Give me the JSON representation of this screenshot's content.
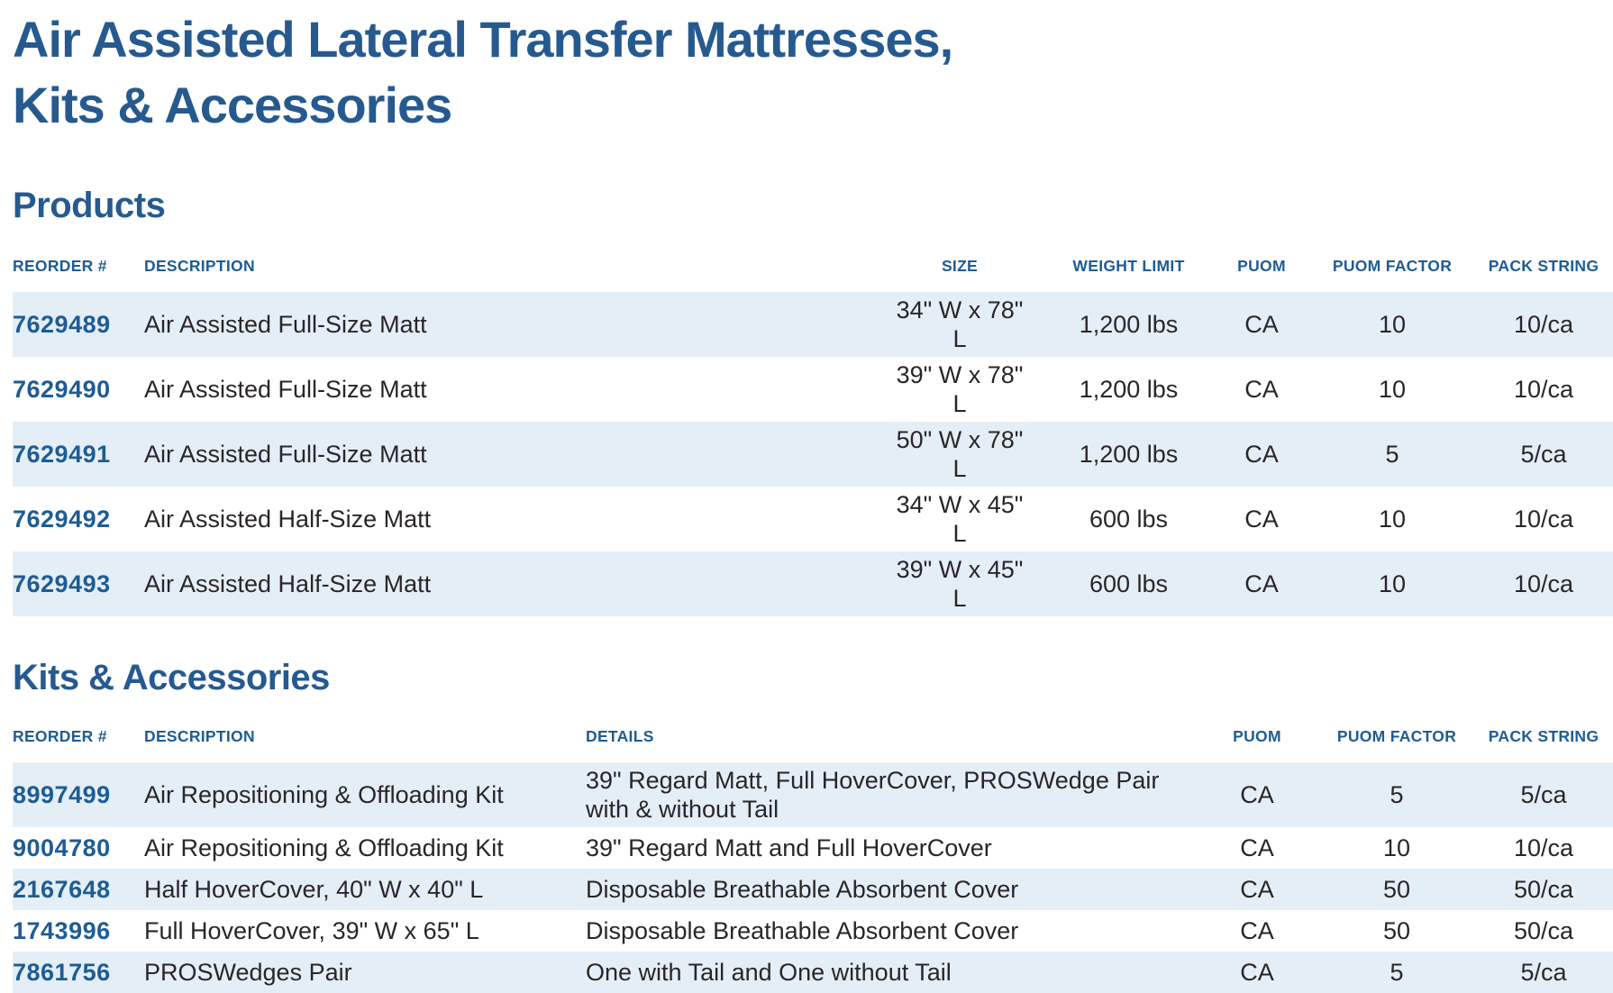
{
  "page": {
    "title_line1": "Air Assisted Lateral Transfer Mattresses,",
    "title_line2": "Kits & Accessories"
  },
  "colors": {
    "heading_blue": "#265a8f",
    "table_header_blue": "#1e5c94",
    "row_alt_background": "#e4eef6",
    "body_text": "#2a2627"
  },
  "products": {
    "heading": "Products",
    "columns": [
      "REORDER #",
      "DESCRIPTION",
      "SIZE",
      "WEIGHT LIMIT",
      "PUOM",
      "PUOM FACTOR",
      "PACK STRING"
    ],
    "rows": [
      {
        "reorder": "7629489",
        "description": "Air Assisted Full-Size Matt",
        "size": "34\" W x 78\" L",
        "weight_limit": "1,200 lbs",
        "puom": "CA",
        "puom_factor": "10",
        "pack_string": "10/ca"
      },
      {
        "reorder": "7629490",
        "description": "Air Assisted Full-Size Matt",
        "size": "39\" W x 78\" L",
        "weight_limit": "1,200 lbs",
        "puom": "CA",
        "puom_factor": "10",
        "pack_string": "10/ca"
      },
      {
        "reorder": "7629491",
        "description": "Air Assisted Full-Size Matt",
        "size": "50\" W x 78\" L",
        "weight_limit": "1,200 lbs",
        "puom": "CA",
        "puom_factor": "5",
        "pack_string": "5/ca"
      },
      {
        "reorder": "7629492",
        "description": "Air Assisted Half-Size Matt",
        "size": "34\" W x 45\" L",
        "weight_limit": "600 lbs",
        "puom": "CA",
        "puom_factor": "10",
        "pack_string": "10/ca"
      },
      {
        "reorder": "7629493",
        "description": "Air Assisted Half-Size Matt",
        "size": "39\" W x 45\" L",
        "weight_limit": "600 lbs",
        "puom": "CA",
        "puom_factor": "10",
        "pack_string": "10/ca"
      }
    ]
  },
  "kits": {
    "heading": "Kits & Accessories",
    "columns": [
      "REORDER #",
      "DESCRIPTION",
      "DETAILS",
      "PUOM",
      "PUOM FACTOR",
      "PACK STRING"
    ],
    "rows": [
      {
        "reorder": "8997499",
        "description": "Air Repositioning & Offloading Kit",
        "details": "39\" Regard Matt, Full HoverCover, PROSWedge Pair with & without Tail",
        "puom": "CA",
        "puom_factor": "5",
        "pack_string": "5/ca"
      },
      {
        "reorder": "9004780",
        "description": "Air Repositioning & Offloading Kit",
        "details": "39\" Regard Matt and Full HoverCover",
        "puom": "CA",
        "puom_factor": "10",
        "pack_string": "10/ca"
      },
      {
        "reorder": "2167648",
        "description": "Half HoverCover, 40\" W x 40\" L",
        "details": "Disposable Breathable Absorbent Cover",
        "puom": "CA",
        "puom_factor": "50",
        "pack_string": "50/ca"
      },
      {
        "reorder": "1743996",
        "description": "Full HoverCover, 39\" W x 65\" L",
        "details": "Disposable Breathable Absorbent Cover",
        "puom": "CA",
        "puom_factor": "50",
        "pack_string": "50/ca"
      },
      {
        "reorder": "7861756",
        "description": "PROSWedges Pair",
        "details": "One with Tail and One without Tail",
        "puom": "CA",
        "puom_factor": "5",
        "pack_string": "5/ca"
      }
    ]
  }
}
